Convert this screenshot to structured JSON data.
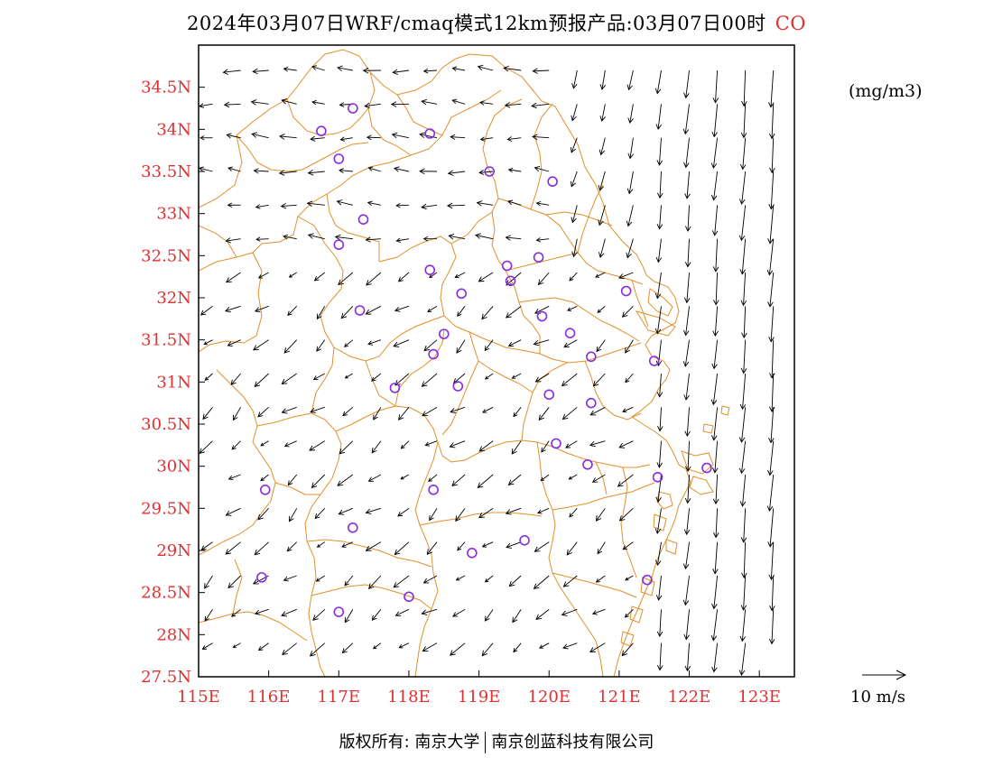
{
  "title": {
    "text": "2024年03月07日WRF/cmaq模式12km预报产品:03月07日00时",
    "pollutant": "CO"
  },
  "units": "(mg/m3)",
  "footer": {
    "left": "版权所有: 南京大学",
    "right": "南京创蓝科技有限公司"
  },
  "colors": {
    "axis_labels": "#e03030",
    "boundaries": "#e0902c",
    "stations": "#8a2be2",
    "vectors": "#000000"
  },
  "map": {
    "lon_range": [
      115,
      123.5
    ],
    "lat_range": [
      27.5,
      35
    ],
    "x_ticks": [
      "115E",
      "116E",
      "117E",
      "118E",
      "119E",
      "120E",
      "121E",
      "122E",
      "123E"
    ],
    "y_ticks": [
      "27.5N",
      "28N",
      "28.5N",
      "29N",
      "29.5N",
      "30N",
      "30.5N",
      "31N",
      "31.5N",
      "32N",
      "32.5N",
      "33N",
      "33.5N",
      "34N",
      "34.5N"
    ],
    "reference_vector_label": "10 m/s",
    "stations": [
      [
        117.2,
        34.25
      ],
      [
        116.75,
        33.98
      ],
      [
        118.3,
        33.95
      ],
      [
        117.0,
        33.65
      ],
      [
        119.15,
        33.5
      ],
      [
        120.05,
        33.38
      ],
      [
        117.35,
        32.93
      ],
      [
        117.0,
        32.63
      ],
      [
        119.85,
        32.48
      ],
      [
        119.4,
        32.38
      ],
      [
        118.3,
        32.33
      ],
      [
        119.45,
        32.2
      ],
      [
        118.75,
        32.05
      ],
      [
        121.1,
        32.08
      ],
      [
        117.3,
        31.85
      ],
      [
        119.9,
        31.78
      ],
      [
        118.5,
        31.57
      ],
      [
        120.3,
        31.58
      ],
      [
        118.35,
        31.33
      ],
      [
        120.6,
        31.3
      ],
      [
        121.5,
        31.25
      ],
      [
        117.8,
        30.93
      ],
      [
        118.7,
        30.95
      ],
      [
        120.0,
        30.85
      ],
      [
        120.6,
        30.75
      ],
      [
        120.1,
        30.27
      ],
      [
        120.55,
        30.02
      ],
      [
        121.55,
        29.87
      ],
      [
        122.25,
        29.98
      ],
      [
        115.95,
        29.72
      ],
      [
        118.35,
        29.72
      ],
      [
        117.2,
        29.27
      ],
      [
        119.65,
        29.12
      ],
      [
        118.9,
        28.97
      ],
      [
        115.9,
        28.68
      ],
      [
        121.4,
        28.65
      ],
      [
        118.0,
        28.45
      ],
      [
        117.0,
        28.27
      ]
    ]
  }
}
